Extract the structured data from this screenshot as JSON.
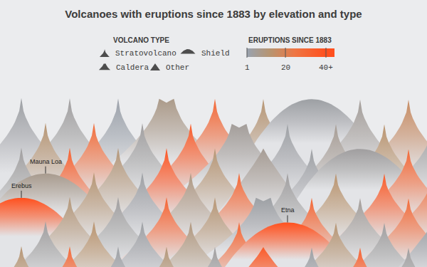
{
  "chart_data": {
    "type": "peaks",
    "title": "Volcanoes with eruptions since 1883 by elevation and type",
    "legend_title": "VOLCANO TYPE",
    "volcano_types": [
      "Stratovolcano",
      "Shield",
      "Caldera",
      "Other"
    ],
    "colorbar": {
      "title": "ERUPTIONS SINCE 1883",
      "range": [
        1,
        40
      ],
      "ticks": [
        1,
        20,
        {
          "value": 40,
          "label": "40+"
        }
      ]
    },
    "tick_labels": false,
    "volcanoes": [
      {
        "type": "Stratovolcano",
        "eruptions": 3,
        "elevation": 5900
      },
      {
        "type": "Stratovolcano",
        "eruptions": 4,
        "elevation": 5850
      },
      {
        "type": "Stratovolcano",
        "eruptions": 2,
        "elevation": 5800
      },
      {
        "type": "Caldera",
        "eruptions": 8,
        "elevation": 5750
      },
      {
        "type": "Stratovolcano",
        "eruptions": 30,
        "elevation": 5700
      },
      {
        "type": "Stratovolcano",
        "eruptions": 12,
        "elevation": 5650
      },
      {
        "type": "Shield",
        "eruptions": 3,
        "elevation": 5600
      },
      {
        "type": "Stratovolcano",
        "eruptions": 5,
        "elevation": 5550
      },
      {
        "type": "Stratovolcano",
        "eruptions": 16,
        "elevation": 5500
      },
      {
        "type": "Stratovolcano",
        "eruptions": 12,
        "elevation": 5400
      },
      {
        "type": "Stratovolcano",
        "eruptions": 28,
        "elevation": 5350
      },
      {
        "type": "Stratovolcano",
        "eruptions": 4,
        "elevation": 5300
      },
      {
        "type": "Stratovolcano",
        "eruptions": 35,
        "elevation": 5250
      },
      {
        "type": "Caldera",
        "eruptions": 5,
        "elevation": 5200
      },
      {
        "type": "Stratovolcano",
        "eruptions": 3,
        "elevation": 5150
      },
      {
        "type": "Stratovolcano",
        "eruptions": 6,
        "elevation": 5100
      },
      {
        "type": "Stratovolcano",
        "eruptions": 13,
        "elevation": 5050
      },
      {
        "type": "Stratovolcano",
        "eruptions": 4,
        "elevation": 5000
      },
      {
        "type": "Stratovolcano",
        "eruptions": 4,
        "elevation": 4950
      },
      {
        "type": "Stratovolcano",
        "eruptions": 33,
        "elevation": 4900
      },
      {
        "type": "Stratovolcano",
        "eruptions": 11,
        "elevation": 4850
      },
      {
        "type": "Stratovolcano",
        "eruptions": 38,
        "elevation": 4800
      },
      {
        "type": "Stratovolcano",
        "eruptions": 12,
        "elevation": 4750
      },
      {
        "type": "Other",
        "eruptions": 6,
        "elevation": 4700
      },
      {
        "type": "Stratovolcano",
        "eruptions": 3,
        "elevation": 4650
      },
      {
        "type": "Shield",
        "eruptions": 4,
        "elevation": 4600
      },
      {
        "type": "Stratovolcano",
        "eruptions": 30,
        "elevation": 4550
      },
      {
        "type": "Shield",
        "eruptions": 7,
        "elevation": 4169,
        "name": "Mauna Loa"
      },
      {
        "type": "Stratovolcano",
        "eruptions": 12,
        "elevation": 4450
      },
      {
        "type": "Stratovolcano",
        "eruptions": 3,
        "elevation": 4400
      },
      {
        "type": "Stratovolcano",
        "eruptions": 9,
        "elevation": 4350
      },
      {
        "type": "Stratovolcano",
        "eruptions": 30,
        "elevation": 4300
      },
      {
        "type": "Stratovolcano",
        "eruptions": 4,
        "elevation": 4250
      },
      {
        "type": "Stratovolcano",
        "eruptions": 13,
        "elevation": 4200
      },
      {
        "type": "Stratovolcano",
        "eruptions": 35,
        "elevation": 4150
      },
      {
        "type": "Stratovolcano",
        "eruptions": 28,
        "elevation": 4100
      },
      {
        "type": "Shield",
        "eruptions": 40,
        "elevation": 3794,
        "name": "Erebus"
      },
      {
        "type": "Stratovolcano",
        "eruptions": 11,
        "elevation": 4050
      },
      {
        "type": "Stratovolcano",
        "eruptions": 4,
        "elevation": 4000
      },
      {
        "type": "Stratovolcano",
        "eruptions": 32,
        "elevation": 3950
      },
      {
        "type": "Stratovolcano",
        "eruptions": 12,
        "elevation": 3900
      },
      {
        "type": "Caldera",
        "eruptions": 3,
        "elevation": 3850
      },
      {
        "type": "Stratovolcano",
        "eruptions": 30,
        "elevation": 3800
      },
      {
        "type": "Stratovolcano",
        "eruptions": 5,
        "elevation": 3750
      },
      {
        "type": "Stratovolcano",
        "eruptions": 29,
        "elevation": 3700
      },
      {
        "type": "Stratovolcano",
        "eruptions": 4,
        "elevation": 3650
      },
      {
        "type": "Stratovolcano",
        "eruptions": 13,
        "elevation": 3600
      },
      {
        "type": "Stratovolcano",
        "eruptions": 3,
        "elevation": 3550
      },
      {
        "type": "Stratovolcano",
        "eruptions": 10,
        "elevation": 3500
      },
      {
        "type": "Stratovolcano",
        "eruptions": 31,
        "elevation": 3450
      },
      {
        "type": "Shield",
        "eruptions": 40,
        "elevation": 3357,
        "name": "Etna"
      },
      {
        "type": "Stratovolcano",
        "eruptions": 12,
        "elevation": 3300
      },
      {
        "type": "Stratovolcano",
        "eruptions": 4,
        "elevation": 3250
      },
      {
        "type": "Other",
        "eruptions": 3,
        "elevation": 3200
      },
      {
        "type": "Stratovolcano",
        "eruptions": 12,
        "elevation": 3150
      },
      {
        "type": "Stratovolcano",
        "eruptions": 30,
        "elevation": 3100
      },
      {
        "type": "Stratovolcano",
        "eruptions": 3,
        "elevation": 3050
      },
      {
        "type": "Stratovolcano",
        "eruptions": 11,
        "elevation": 3000
      },
      {
        "type": "Stratovolcano",
        "eruptions": 4,
        "elevation": 2950
      },
      {
        "type": "Other",
        "eruptions": 36,
        "elevation": 2900
      },
      {
        "type": "Stratovolcano",
        "eruptions": 3,
        "elevation": 2850
      },
      {
        "type": "Stratovolcano",
        "eruptions": 33,
        "elevation": 2800
      },
      {
        "type": "Stratovolcano",
        "eruptions": 4,
        "elevation": 2750
      }
    ]
  }
}
